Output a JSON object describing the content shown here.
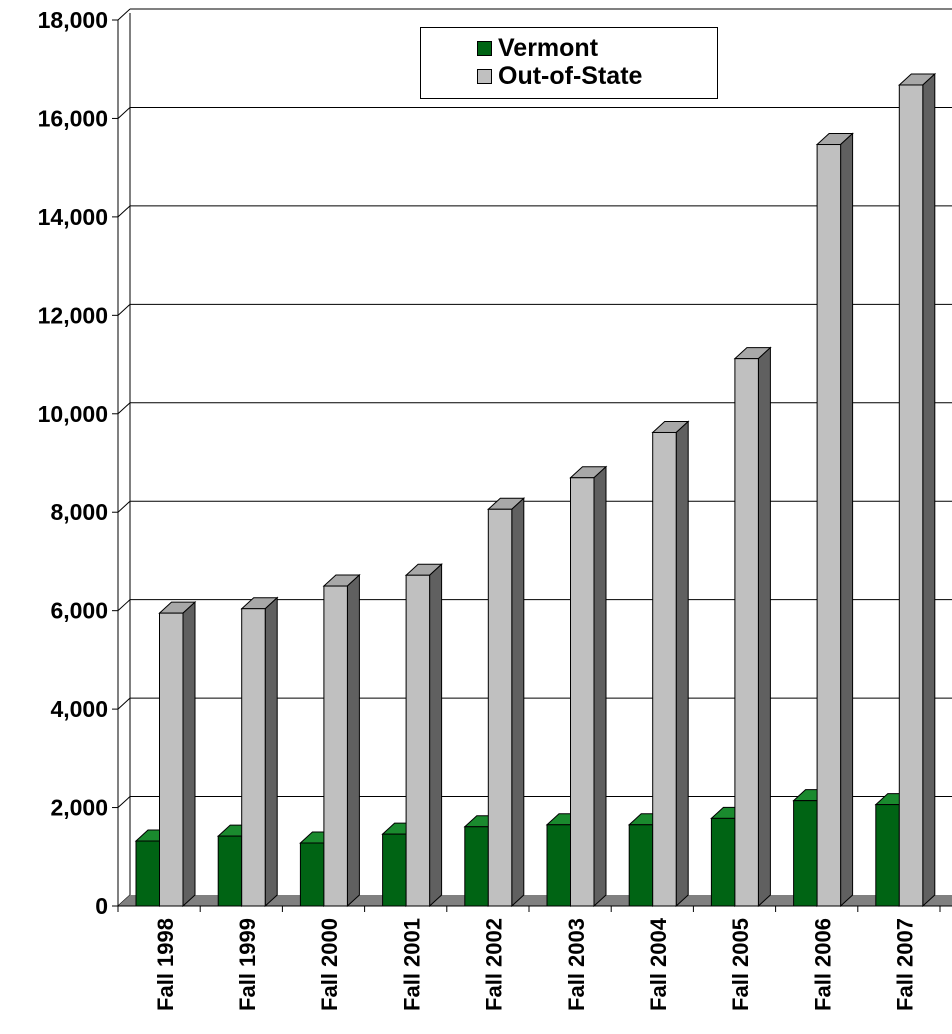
{
  "chart_data": {
    "type": "bar",
    "categories": [
      "Fall 1998",
      "Fall 1999",
      "Fall 2000",
      "Fall 2001",
      "Fall 2002",
      "Fall 2003",
      "Fall 2004",
      "Fall 2005",
      "Fall 2006",
      "Fall 2007"
    ],
    "series": [
      {
        "name": "Vermont",
        "values": [
          1320,
          1420,
          1280,
          1460,
          1610,
          1650,
          1650,
          1780,
          2140,
          2060
        ]
      },
      {
        "name": "Out-of-State",
        "values": [
          5950,
          6040,
          6500,
          6720,
          8060,
          8700,
          9620,
          11120,
          15470,
          16680
        ]
      }
    ],
    "title": "",
    "xlabel": "",
    "ylabel": "",
    "ylim": [
      0,
      18000
    ],
    "yticks": [
      0,
      2000,
      4000,
      6000,
      8000,
      10000,
      12000,
      14000,
      16000,
      18000
    ],
    "ytick_labels": [
      "0",
      "2,000",
      "4,000",
      "6,000",
      "8,000",
      "10,000",
      "12,000",
      "14,000",
      "16,000",
      "18,000"
    ],
    "grid": true,
    "style": "3d",
    "legend_position": "top-center"
  },
  "colors": {
    "Vermont": {
      "front": "#006414",
      "top": "#1a8a2e",
      "side": "#003a0a"
    },
    "Out-of-State": {
      "front": "#c0c0c0",
      "top": "#a8a8a8",
      "side": "#606060"
    },
    "floor": "#808080",
    "grid": "#000000"
  }
}
